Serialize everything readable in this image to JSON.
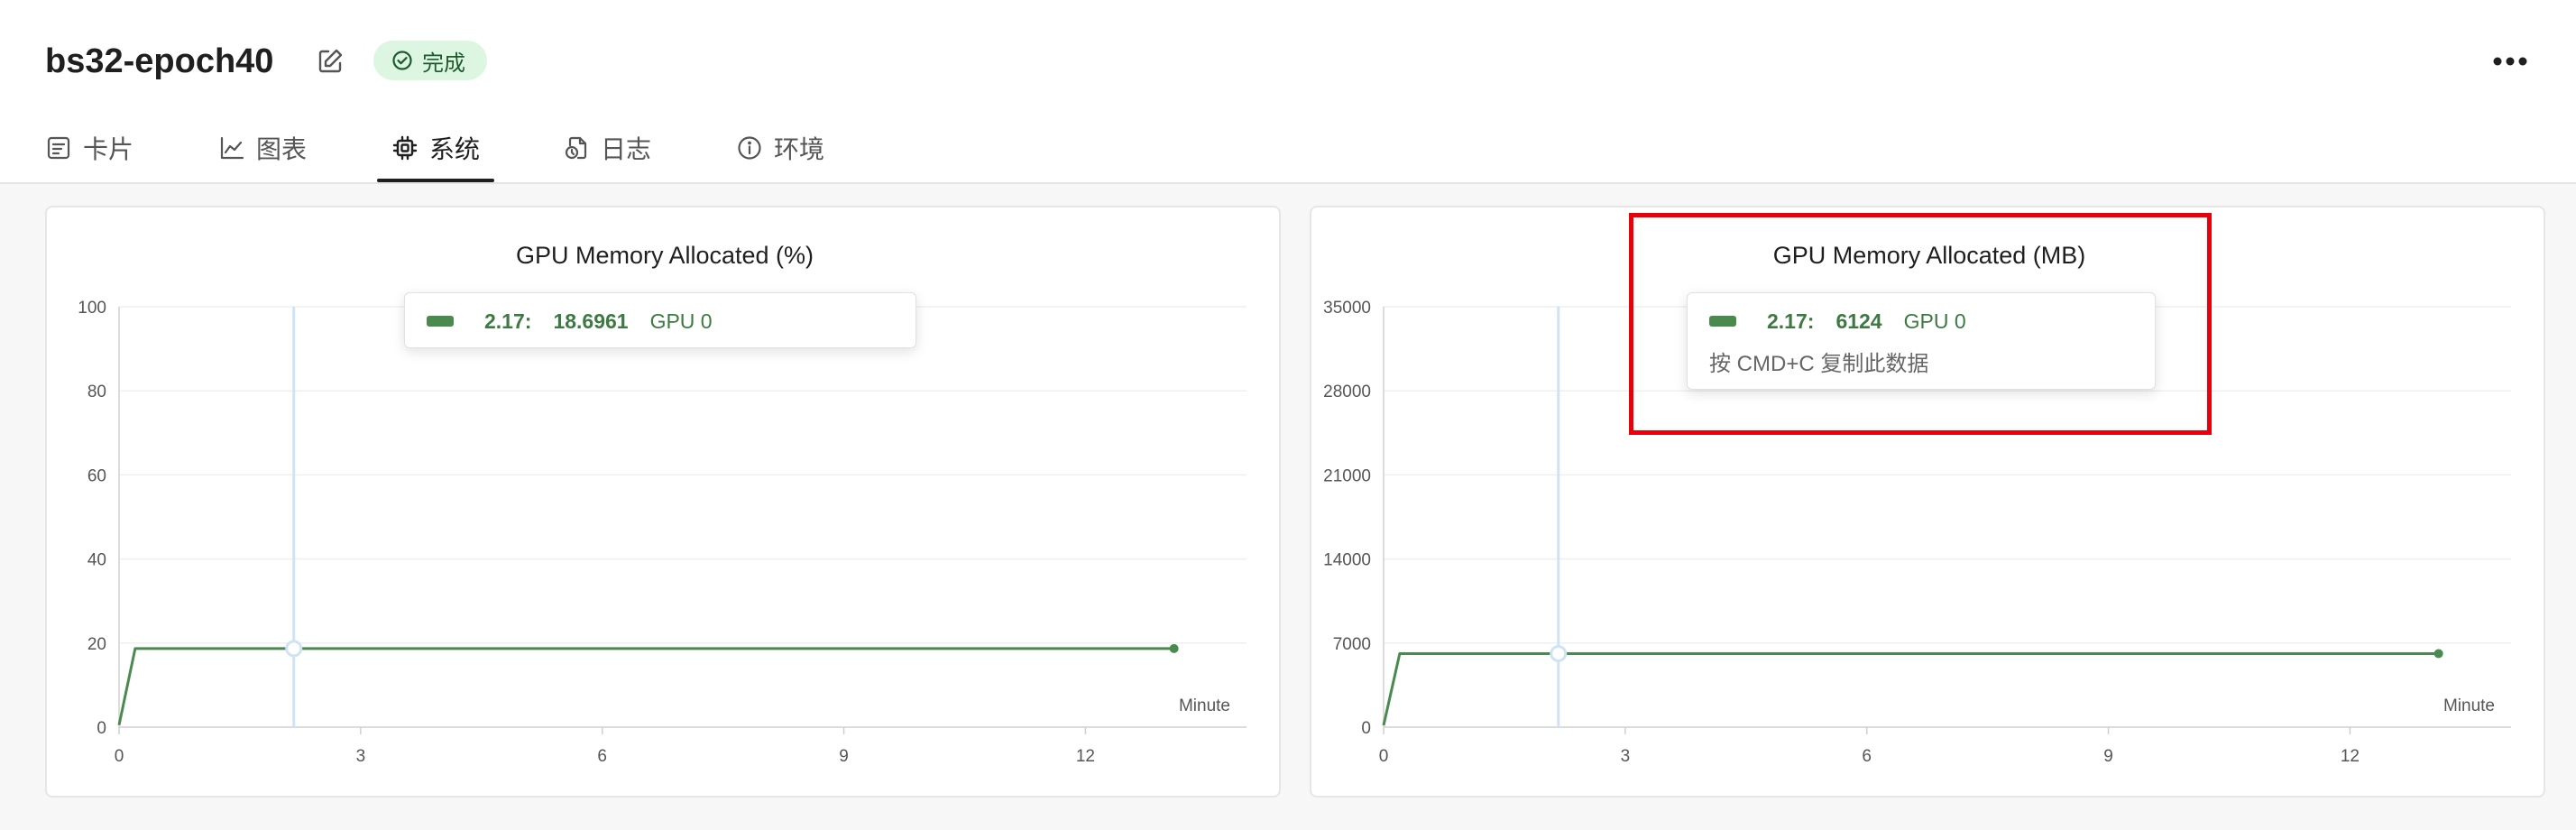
{
  "header": {
    "run_title": "bs32-epoch40",
    "status": "完成",
    "edit_icon": "edit-icon",
    "more_icon": "more-horizontal-icon"
  },
  "tabs": [
    {
      "label": "卡片",
      "icon": "card-icon",
      "active": false
    },
    {
      "label": "图表",
      "icon": "line-chart-icon",
      "active": false
    },
    {
      "label": "系统",
      "icon": "cpu-icon",
      "active": true
    },
    {
      "label": "日志",
      "icon": "log-file-icon",
      "active": false
    },
    {
      "label": "环境",
      "icon": "info-icon",
      "active": false
    }
  ],
  "colors": {
    "series": "#4a8a4f",
    "status_bg": "#dcf6e2",
    "highlight": "#e8000b",
    "cursor_line": "#cfe3f3"
  },
  "chart_data": [
    {
      "type": "line",
      "title": "GPU Memory Allocated (%)",
      "xlabel": "Minute",
      "ylabel": "",
      "xlim": [
        0,
        14
      ],
      "ylim": [
        0,
        100
      ],
      "xticks": [
        0,
        3,
        6,
        9,
        12
      ],
      "yticks": [
        0,
        20,
        40,
        60,
        80,
        100
      ],
      "grid": true,
      "series": [
        {
          "name": "GPU 0",
          "x": [
            0,
            0.2,
            2.17,
            13.1
          ],
          "y": [
            0.5,
            18.6961,
            18.6961,
            18.6961
          ]
        }
      ],
      "cursor_x": 2.17,
      "tooltip": {
        "x_label": "2.17:",
        "y_label": "18.6961",
        "series": "GPU 0",
        "hint": ""
      }
    },
    {
      "type": "line",
      "title": "GPU Memory Allocated (MB)",
      "xlabel": "Minute",
      "ylabel": "",
      "xlim": [
        0,
        14
      ],
      "ylim": [
        0,
        35000
      ],
      "xticks": [
        0,
        3,
        6,
        9,
        12
      ],
      "yticks": [
        0,
        7000,
        14000,
        21000,
        28000,
        35000
      ],
      "grid": true,
      "series": [
        {
          "name": "GPU 0",
          "x": [
            0,
            0.2,
            2.17,
            13.1
          ],
          "y": [
            150,
            6124,
            6124,
            6124
          ]
        }
      ],
      "cursor_x": 2.17,
      "tooltip": {
        "x_label": "2.17:",
        "y_label": "6124",
        "series": "GPU 0",
        "hint": "按 CMD+C 复制此数据"
      }
    }
  ]
}
